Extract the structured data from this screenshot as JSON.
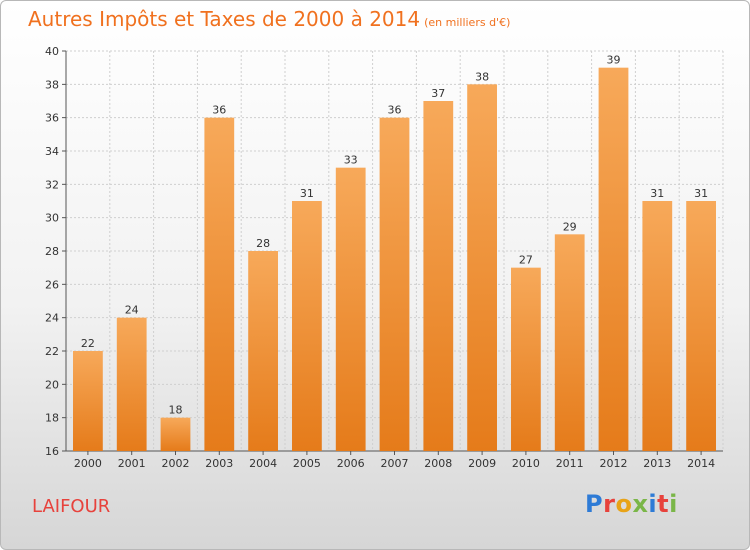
{
  "header": {
    "title": "Autres Impôts et Taxes de 2000 à 2014",
    "subtitle": "(en milliers d'€)"
  },
  "footer": {
    "location": "LAIFOUR",
    "logo_text": "Proxiti",
    "logo_colors": [
      "#2e7bd6",
      "#e7423c",
      "#e8a317",
      "#7ab648",
      "#2e7bd6",
      "#e7423c",
      "#7ab648"
    ]
  },
  "colors": {
    "bar_light": "#f7a95a",
    "bar_dark": "#e57b1a",
    "title": "#f0711f",
    "location": "#e7423c",
    "grid": "#cfcfcf"
  },
  "chart_data": {
    "type": "bar",
    "title": "Autres Impôts et Taxes de 2000 à 2014",
    "subtitle": "(en milliers d'€)",
    "xlabel": "",
    "ylabel": "",
    "categories": [
      "2000",
      "2001",
      "2002",
      "2003",
      "2004",
      "2005",
      "2006",
      "2007",
      "2008",
      "2009",
      "2010",
      "2011",
      "2012",
      "2013",
      "2014"
    ],
    "values": [
      22,
      24,
      18,
      36,
      28,
      31,
      33,
      36,
      37,
      38,
      27,
      29,
      39,
      31,
      31
    ],
    "ylim": [
      16,
      40
    ],
    "yticks": [
      16,
      18,
      20,
      22,
      24,
      26,
      28,
      30,
      32,
      34,
      36,
      38,
      40
    ],
    "grid": true,
    "legend": "none"
  }
}
